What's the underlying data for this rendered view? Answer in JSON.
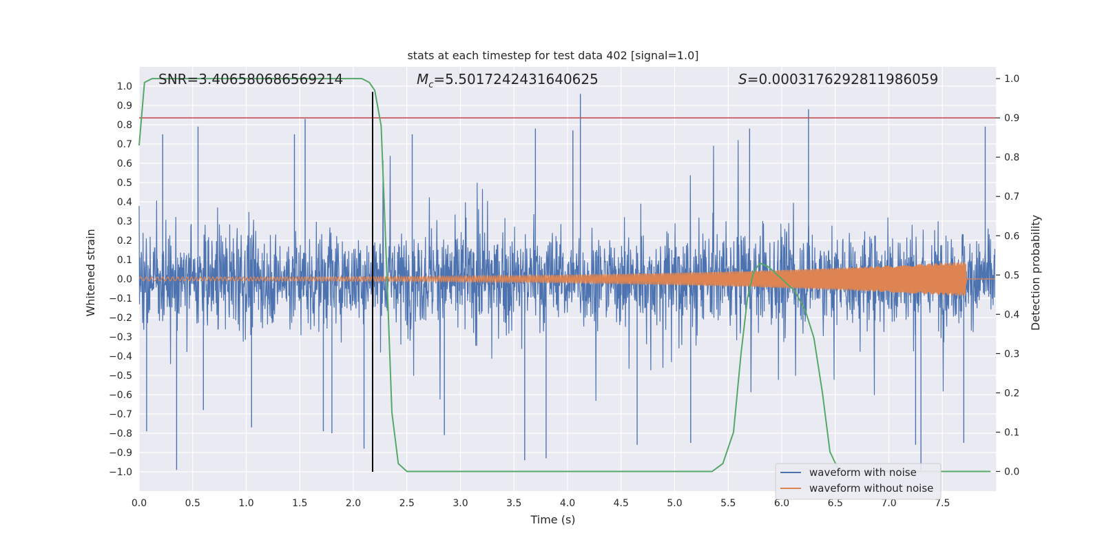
{
  "chart_data": {
    "type": "line",
    "title": "stats at each timestep for test data 402 [signal=1.0]",
    "xlabel": "Time (s)",
    "ylabel_left": "Whitened strain",
    "ylabel_right": "Detection probability",
    "xlim": [
      0.0,
      8.0
    ],
    "ylim_left": [
      -1.1,
      1.1
    ],
    "ylim_right": [
      -0.05,
      1.03
    ],
    "xticks": [
      0.0,
      0.5,
      1.0,
      1.5,
      2.0,
      2.5,
      3.0,
      3.5,
      4.0,
      4.5,
      5.0,
      5.5,
      6.0,
      6.5,
      7.0,
      7.5
    ],
    "xtick_labels": [
      "0.0",
      "0.5",
      "1.0",
      "1.5",
      "2.0",
      "2.5",
      "3.0",
      "3.5",
      "4.0",
      "4.5",
      "5.0",
      "5.5",
      "6.0",
      "6.5",
      "7.0",
      "7.5"
    ],
    "yticks_left": [
      1.0,
      0.9,
      0.8,
      0.7,
      0.6,
      0.5,
      0.4,
      0.3,
      0.2,
      0.1,
      0.0,
      -0.1,
      -0.2,
      -0.3,
      -0.4,
      -0.5,
      -0.6,
      -0.7,
      -0.8,
      -0.9,
      -1.0
    ],
    "ytick_labels_left": [
      "1.0",
      "0.9",
      "0.8",
      "0.7",
      "0.6",
      "0.5",
      "0.4",
      "0.3",
      "0.2",
      "0.1",
      "0.0",
      "−0.1",
      "−0.2",
      "−0.3",
      "−0.4",
      "−0.5",
      "−0.6",
      "−0.7",
      "−0.8",
      "−0.9",
      "−1.0"
    ],
    "yticks_right": [
      1.0,
      0.9,
      0.8,
      0.7,
      0.6,
      0.5,
      0.4,
      0.3,
      0.2,
      0.1,
      0.0
    ],
    "ytick_labels_right": [
      "1.0",
      "0.9",
      "0.8",
      "0.7",
      "0.6",
      "0.5",
      "0.4",
      "0.3",
      "0.2",
      "0.1",
      "0.0"
    ],
    "annotations": {
      "snr": "SNR=3.406580686569214",
      "mc_symbol": "M",
      "mc_sub": "c",
      "mc_value": "=5.5017242431640625",
      "s_symbol": "S",
      "s_value": "=0.0003176292811986059"
    },
    "threshold_line": {
      "axis": "right",
      "value": 0.9,
      "color": "#c44e52"
    },
    "vertical_marker": {
      "x": 2.18,
      "ymin": -1.0,
      "ymax": 0.97,
      "color": "#000000"
    },
    "series": [
      {
        "name": "waveform with noise",
        "color": "#4c72b0",
        "axis": "left",
        "kind": "noise",
        "spikes": [
          {
            "x": 0.07,
            "y": -0.79
          },
          {
            "x": 0.22,
            "y": 0.75
          },
          {
            "x": 0.35,
            "y": -0.99
          },
          {
            "x": 0.55,
            "y": 0.79
          },
          {
            "x": 0.6,
            "y": -0.68
          },
          {
            "x": 1.05,
            "y": -0.77
          },
          {
            "x": 1.45,
            "y": 0.75
          },
          {
            "x": 1.55,
            "y": 0.83
          },
          {
            "x": 1.72,
            "y": -0.79
          },
          {
            "x": 1.8,
            "y": -0.8
          },
          {
            "x": 2.1,
            "y": -0.88
          },
          {
            "x": 2.55,
            "y": 0.75
          },
          {
            "x": 2.85,
            "y": -0.81
          },
          {
            "x": 3.6,
            "y": -0.94
          },
          {
            "x": 3.7,
            "y": 0.78
          },
          {
            "x": 3.8,
            "y": -0.93
          },
          {
            "x": 4.12,
            "y": 0.96
          },
          {
            "x": 4.05,
            "y": 0.77
          },
          {
            "x": 4.65,
            "y": -0.86
          },
          {
            "x": 5.15,
            "y": -0.85
          },
          {
            "x": 5.7,
            "y": 0.78
          },
          {
            "x": 6.25,
            "y": 0.88
          },
          {
            "x": 7.25,
            "y": -0.86
          },
          {
            "x": 7.3,
            "y": -0.99
          },
          {
            "x": 7.7,
            "y": -0.85
          },
          {
            "x": 7.9,
            "y": 0.79
          }
        ]
      },
      {
        "name": "waveform without noise",
        "color": "#dd8452",
        "axis": "left",
        "kind": "chirp",
        "t_end": 7.72,
        "amp_start": 0.01,
        "amp_end": 0.09
      },
      {
        "name": "detection probability",
        "color": "#55a868",
        "axis": "right",
        "kind": "line",
        "x": [
          0.0,
          0.05,
          0.12,
          0.2,
          0.5,
          1.0,
          1.5,
          2.0,
          2.08,
          2.15,
          2.2,
          2.26,
          2.3,
          2.36,
          2.42,
          2.5,
          2.7,
          3.0,
          4.0,
          5.0,
          5.35,
          5.45,
          5.55,
          5.62,
          5.68,
          5.74,
          5.8,
          5.88,
          6.0,
          6.12,
          6.22,
          6.3,
          6.38,
          6.45,
          6.52,
          6.6,
          7.0,
          7.5,
          7.95
        ],
        "y": [
          0.83,
          0.99,
          1.0,
          1.0,
          1.0,
          1.0,
          1.0,
          1.0,
          1.0,
          0.99,
          0.97,
          0.88,
          0.6,
          0.15,
          0.02,
          0.0,
          0.0,
          0.0,
          0.0,
          0.0,
          0.0,
          0.02,
          0.1,
          0.3,
          0.44,
          0.51,
          0.53,
          0.52,
          0.49,
          0.46,
          0.41,
          0.34,
          0.2,
          0.05,
          0.01,
          0.0,
          0.0,
          0.0,
          0.0
        ]
      }
    ],
    "legend": {
      "placement": "bottom-right",
      "entries": [
        "waveform with noise",
        "waveform without noise"
      ]
    },
    "grid": true,
    "background": "#eaeaf2"
  }
}
